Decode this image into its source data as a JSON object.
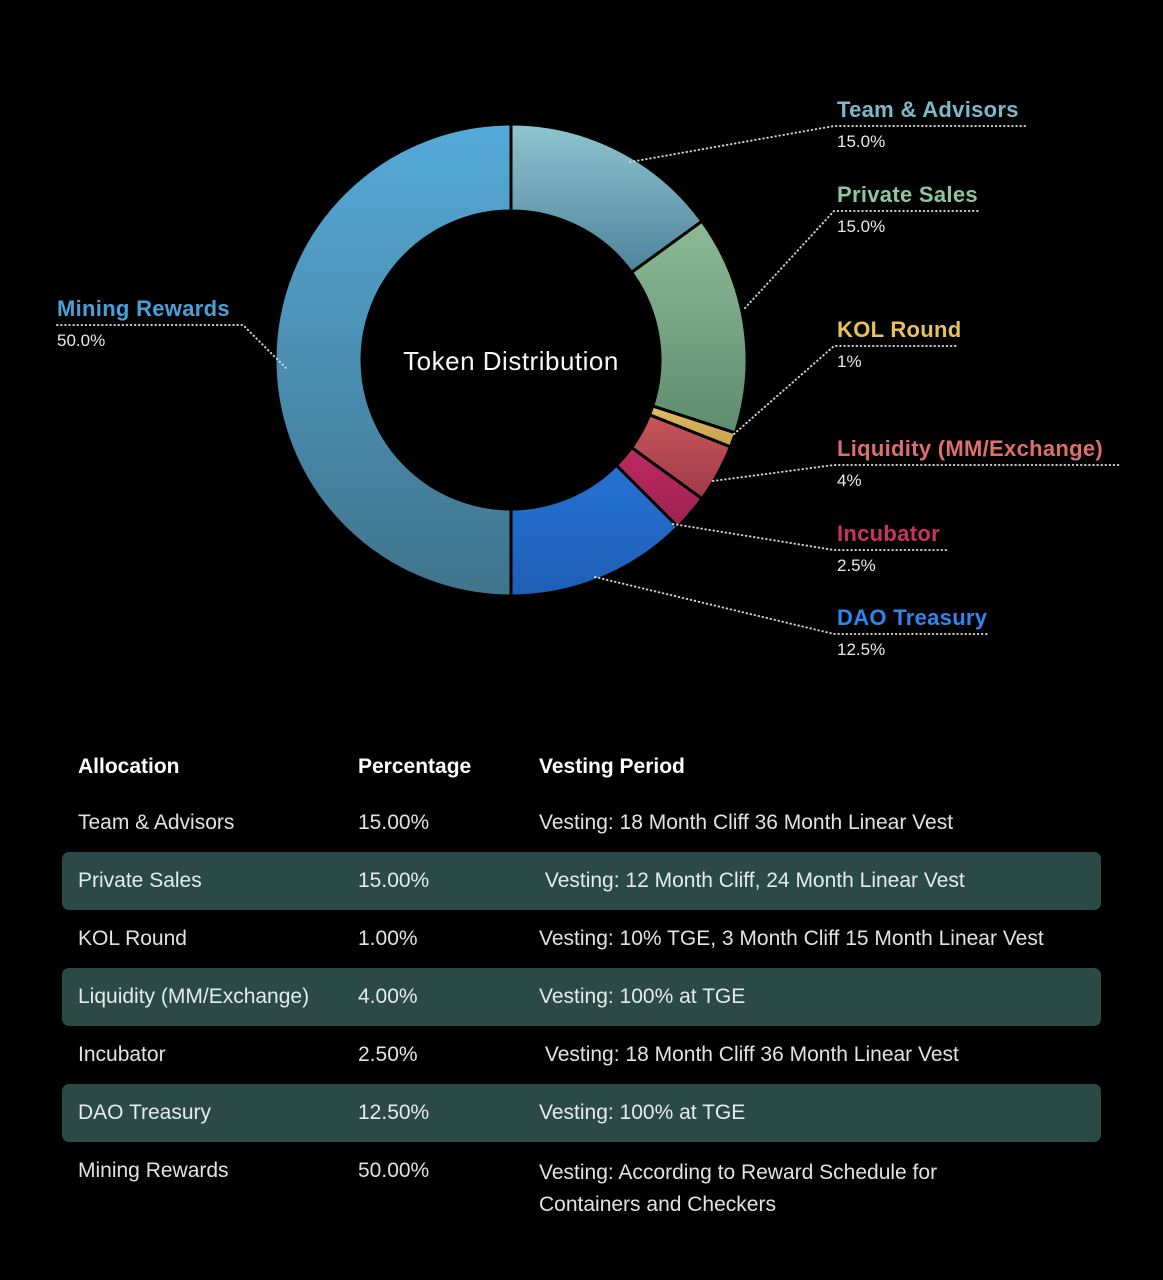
{
  "page": {
    "background": "#000000",
    "highlight_row_color": "#2b4a45"
  },
  "chart_data": {
    "type": "pie",
    "donut": true,
    "title": "Token Distribution",
    "units": "percent",
    "legend_position": "callout-labels",
    "segments": [
      {
        "label": "Team & Advisors",
        "value": 15.0,
        "display_pct": "15.0%",
        "label_color": "#7db8cc",
        "color_top": "#8ec5cf",
        "color_bottom": "#4f839b"
      },
      {
        "label": "Private Sales",
        "value": 15.0,
        "display_pct": "15.0%",
        "label_color": "#8fc79c",
        "color_top": "#8dba96",
        "color_bottom": "#5f8c6e"
      },
      {
        "label": "KOL Round",
        "value": 1.0,
        "display_pct": "1%",
        "label_color": "#e9c258",
        "color_top": "#e0bd64",
        "color_bottom": "#c5a14c"
      },
      {
        "label": "Liquidity (MM/Exchange)",
        "value": 4.0,
        "display_pct": "4%",
        "label_color": "#df6f69",
        "color_top": "#c9555a",
        "color_bottom": "#9d3b48"
      },
      {
        "label": "Incubator",
        "value": 2.5,
        "display_pct": "2.5%",
        "label_color": "#cb3265",
        "color_top": "#bd2a60",
        "color_bottom": "#9e2253"
      },
      {
        "label": "DAO Treasury",
        "value": 12.5,
        "display_pct": "12.5%",
        "label_color": "#2d86f2",
        "color_top": "#2572d4",
        "color_bottom": "#1e5eb5"
      },
      {
        "label": "Mining Rewards",
        "value": 50.0,
        "display_pct": "50.0%",
        "label_color": "#47a2da",
        "color_top": "#55aad9",
        "color_bottom": "#40748b"
      }
    ]
  },
  "table": {
    "headers": {
      "allocation": "Allocation",
      "percentage": "Percentage",
      "vesting": "Vesting Period"
    },
    "rows": [
      {
        "allocation": "Team & Advisors",
        "percentage": "15.00%",
        "vesting": "Vesting: 18 Month Cliff 36 Month Linear Vest",
        "highlight": false
      },
      {
        "allocation": "Private Sales",
        "percentage": "15.00%",
        "vesting": " Vesting: 12 Month Cliff, 24 Month Linear Vest",
        "highlight": true
      },
      {
        "allocation": "KOL Round",
        "percentage": "1.00%",
        "vesting": "Vesting: 10% TGE, 3 Month Cliff 15 Month Linear Vest",
        "highlight": false
      },
      {
        "allocation": "Liquidity (MM/Exchange)",
        "percentage": "4.00%",
        "vesting": "Vesting: 100% at TGE",
        "highlight": true
      },
      {
        "allocation": "Incubator",
        "percentage": "2.50%",
        "vesting": " Vesting: 18 Month Cliff 36 Month Linear Vest",
        "highlight": false
      },
      {
        "allocation": "DAO Treasury",
        "percentage": "12.50%",
        "vesting": "Vesting: 100% at TGE",
        "highlight": true
      },
      {
        "allocation": "Mining Rewards",
        "percentage": "50.00%",
        "vesting": "Vesting: According to Reward Schedule for Containers and Checkers",
        "highlight": false
      }
    ]
  }
}
